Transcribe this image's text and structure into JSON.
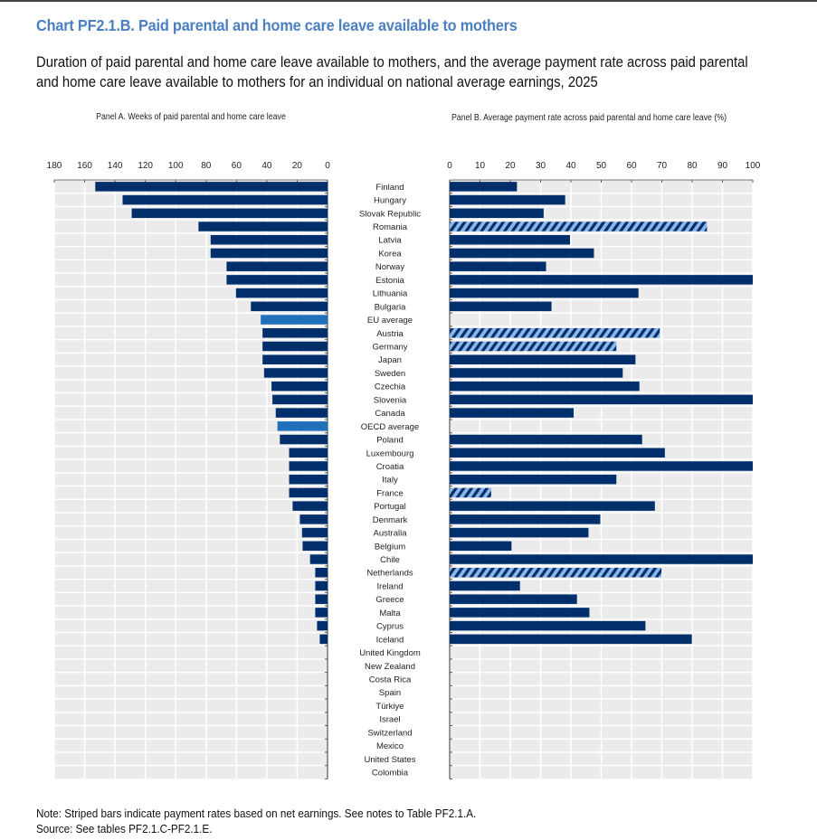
{
  "header": {
    "title": "Chart PF2.1.B. Paid parental and home care leave available to mothers",
    "subtitle": "Duration of paid parental and home care leave available to mothers, and the average payment rate across paid parental and home care leave available to mothers for an individual on national average earnings, 2025"
  },
  "footer": {
    "note": "Note: Striped bars indicate payment rates based on net earnings. See notes to Table PF2.1.A.",
    "source": "Source: See tables PF2.1.C-PF2.1.E."
  },
  "colors": {
    "bar": "#002f6c",
    "average_bar": "#1f6fba",
    "striped_bg": "#8db6e8",
    "plot_bg": "#ebebeb",
    "grid": "#ffffff",
    "title": "#4a7fc1"
  },
  "chart_data": [
    {
      "type": "bar",
      "orientation": "horizontal",
      "title": "Panel A. Weeks of paid parental and home care leave",
      "xlabel": "",
      "ylabel": "",
      "xlim": [
        0,
        180
      ],
      "x_reversed": true,
      "ticks": [
        180,
        160,
        140,
        120,
        100,
        80,
        60,
        40,
        20,
        0
      ],
      "grid": true,
      "categories": [
        "Finland",
        "Hungary",
        "Slovak Republic",
        "Romania",
        "Latvia",
        "Korea",
        "Norway",
        "Estonia",
        "Lithuania",
        "Bulgaria",
        "EU average",
        "Austria",
        "Germany",
        "Japan",
        "Sweden",
        "Czechia",
        "Slovenia",
        "Canada",
        "OECD average",
        "Poland",
        "Luxembourg",
        "Croatia",
        "Italy",
        "France",
        "Portugal",
        "Denmark",
        "Australia",
        "Belgium",
        "Chile",
        "Netherlands",
        "Ireland",
        "Greece",
        "Malta",
        "Cyprus",
        "Iceland",
        "United Kingdom",
        "New Zealand",
        "Costa Rica",
        "Spain",
        "Türkiye",
        "Israel",
        "Switzerland",
        "Mexico",
        "United States",
        "Colombia"
      ],
      "values": [
        153,
        135,
        129,
        85,
        77,
        77,
        66.5,
        66.5,
        60.3,
        50.5,
        44,
        42.8,
        42.8,
        42.8,
        41.8,
        36.9,
        36.3,
        34.1,
        33,
        31.4,
        25.3,
        25.3,
        25.3,
        25.3,
        23,
        18.2,
        16.8,
        16.4,
        11.5,
        8.1,
        8.1,
        8.1,
        8.1,
        6.9,
        5.1,
        0,
        0,
        0,
        0,
        0,
        0,
        0,
        0,
        0,
        0
      ],
      "highlight": [
        "EU average",
        "OECD average"
      ]
    },
    {
      "type": "bar",
      "orientation": "horizontal",
      "title": "Panel B. Average payment rate across paid parental and home care leave (%)",
      "xlabel": "",
      "ylabel": "",
      "xlim": [
        0,
        100
      ],
      "ticks": [
        0,
        10,
        20,
        30,
        40,
        50,
        60,
        70,
        80,
        90,
        100
      ],
      "grid": true,
      "categories": [
        "Finland",
        "Hungary",
        "Slovak Republic",
        "Romania",
        "Latvia",
        "Korea",
        "Norway",
        "Estonia",
        "Lithuania",
        "Bulgaria",
        "EU average",
        "Austria",
        "Germany",
        "Japan",
        "Sweden",
        "Czechia",
        "Slovenia",
        "Canada",
        "OECD average",
        "Poland",
        "Luxembourg",
        "Croatia",
        "Italy",
        "France",
        "Portugal",
        "Denmark",
        "Australia",
        "Belgium",
        "Chile",
        "Netherlands",
        "Ireland",
        "Greece",
        "Malta",
        "Cyprus",
        "Iceland",
        "United Kingdom",
        "New Zealand",
        "Costa Rica",
        "Spain",
        "Türkiye",
        "Israel",
        "Switzerland",
        "Mexico",
        "United States",
        "Colombia"
      ],
      "values": [
        22.2,
        38.1,
        31,
        84.9,
        39.7,
        47.6,
        31.8,
        100,
        62.3,
        33.6,
        null,
        69.3,
        55,
        61.3,
        57.1,
        62.6,
        100,
        40.9,
        null,
        63.5,
        71,
        100,
        55,
        13.7,
        67.7,
        49.7,
        45.8,
        20.4,
        100,
        69.9,
        23.2,
        42,
        46.1,
        64.6,
        79.9,
        null,
        null,
        null,
        null,
        null,
        null,
        null,
        null,
        null,
        null
      ],
      "striped": [
        "Romania",
        "Austria",
        "Germany",
        "France",
        "Netherlands"
      ],
      "legend_note": "Striped bars indicate payment rates based on net earnings"
    }
  ]
}
